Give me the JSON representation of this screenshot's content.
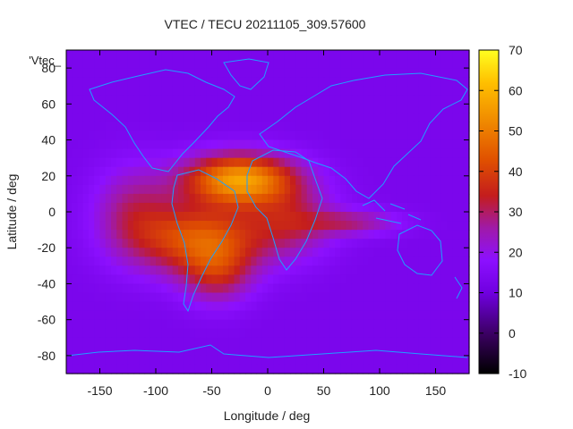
{
  "chart_data": {
    "type": "heatmap",
    "title": "VTEC / TECU 20211105_309.57600",
    "xlabel": "Longitude / deg",
    "ylabel": "Latitude / deg",
    "key_label": "'Vtec_",
    "xlim": [
      -180,
      180
    ],
    "ylim": [
      -90,
      90
    ],
    "xticks": [
      -150,
      -100,
      -50,
      0,
      50,
      100,
      150
    ],
    "yticks": [
      -80,
      -60,
      -40,
      -20,
      0,
      20,
      40,
      60,
      80
    ],
    "colorbar": {
      "range": [
        -10,
        70
      ],
      "ticks": [
        -10,
        0,
        10,
        20,
        30,
        40,
        50,
        60,
        70
      ]
    },
    "background_value": 13,
    "features": [
      {
        "name": "equatorial anomaly core",
        "lon": -25,
        "lat": 18,
        "sigma_lon": 35,
        "sigma_lat": 10,
        "amplitude": 42
      },
      {
        "name": "South America south crest",
        "lon": -60,
        "lat": -15,
        "sigma_lon": 40,
        "sigma_lat": 14,
        "amplitude": 30
      },
      {
        "name": "South Atlantic tail",
        "lon": -45,
        "lat": -35,
        "sigma_lon": 22,
        "sigma_lat": 12,
        "amplitude": 16
      },
      {
        "name": "Pacific west crest",
        "lon": -120,
        "lat": 0,
        "sigma_lon": 25,
        "sigma_lat": 18,
        "amplitude": 14
      },
      {
        "name": "Indian Ocean tongue",
        "lon": 75,
        "lat": -6,
        "sigma_lon": 30,
        "sigma_lat": 5,
        "amplitude": 14
      },
      {
        "name": "Africa equatorial",
        "lon": 20,
        "lat": -5,
        "sigma_lon": 28,
        "sigma_lat": 14,
        "amplitude": 16
      }
    ],
    "grid": false
  }
}
